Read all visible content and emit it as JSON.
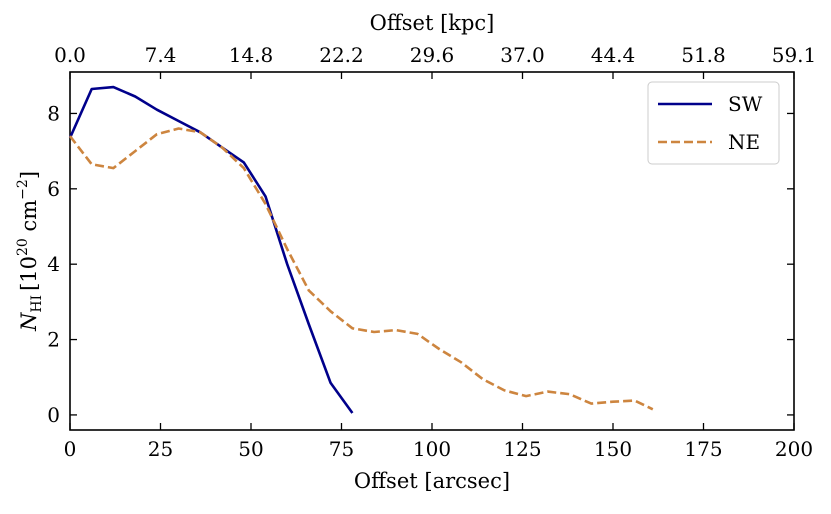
{
  "chart_data": {
    "type": "line",
    "xlabel": "Offset [arcsec]",
    "ylabel_main": "N",
    "ylabel_sub": "HI",
    "ylabel_unit_open": "[10",
    "ylabel_unit_exp1": "20",
    "ylabel_unit_mid": " cm",
    "ylabel_unit_exp2": "−2",
    "ylabel_unit_close": "]",
    "top_xlabel": "Offset [kpc]",
    "xlim": [
      0,
      200
    ],
    "ylim": [
      -0.4,
      9.1
    ],
    "x_ticks": [
      0,
      25,
      50,
      75,
      100,
      125,
      150,
      175,
      200
    ],
    "x_tick_labels": [
      "0",
      "25",
      "50",
      "75",
      "100",
      "125",
      "150",
      "175",
      "200"
    ],
    "y_ticks": [
      0,
      2,
      4,
      6,
      8
    ],
    "y_tick_labels": [
      "0",
      "2",
      "4",
      "6",
      "8"
    ],
    "top_ticks": [
      0,
      25,
      50,
      75,
      100,
      125,
      150,
      175,
      200
    ],
    "top_tick_labels": [
      "0.0",
      "7.4",
      "14.8",
      "22.2",
      "29.6",
      "37.0",
      "44.4",
      "51.8",
      "59.1"
    ],
    "legend_position": "top-right",
    "series": [
      {
        "name": "SW",
        "color": "#00008b",
        "style": "solid",
        "x": [
          0,
          6,
          12,
          18,
          24,
          30,
          36,
          42,
          48,
          54,
          60,
          66,
          72,
          78
        ],
        "y": [
          7.35,
          8.65,
          8.7,
          8.45,
          8.1,
          7.8,
          7.5,
          7.1,
          6.7,
          5.8,
          4.0,
          2.4,
          0.85,
          0.05
        ]
      },
      {
        "name": "NE",
        "color": "#cd853f",
        "style": "dashed",
        "x": [
          0,
          6,
          12,
          18,
          24,
          30,
          36,
          42,
          48,
          54,
          60,
          66,
          72,
          78,
          84,
          90,
          96,
          102,
          108,
          114,
          120,
          126,
          132,
          138,
          144,
          150,
          156,
          161
        ],
        "y": [
          7.4,
          6.65,
          6.55,
          7.0,
          7.45,
          7.6,
          7.5,
          7.1,
          6.55,
          5.6,
          4.4,
          3.3,
          2.75,
          2.3,
          2.2,
          2.25,
          2.15,
          1.75,
          1.4,
          0.95,
          0.65,
          0.5,
          0.62,
          0.55,
          0.3,
          0.35,
          0.38,
          0.15
        ]
      }
    ]
  }
}
